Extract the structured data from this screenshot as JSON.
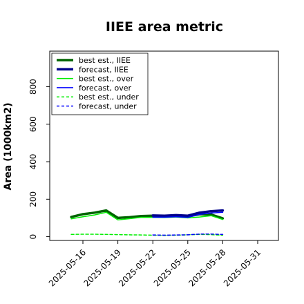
{
  "chart_data": {
    "type": "line",
    "title": "IIEE area metric",
    "xlabel": "",
    "ylabel": "Area (1000km2)",
    "ylim": [
      -20,
      990
    ],
    "y_ticks": [
      0,
      200,
      400,
      600,
      800
    ],
    "x_ticks": [
      "2025-05-16",
      "2025-05-19",
      "2025-05-22",
      "2025-05-25",
      "2025-05-28",
      "2025-05-31"
    ],
    "highlighted_tick": "2025-05-22",
    "highlight_color": "#228b22",
    "legend_position": "upper left",
    "x": [
      "2025-05-15",
      "2025-05-16",
      "2025-05-17",
      "2025-05-18",
      "2025-05-19",
      "2025-05-20",
      "2025-05-21",
      "2025-05-22",
      "2025-05-23",
      "2025-05-24",
      "2025-05-25",
      "2025-05-26",
      "2025-05-27",
      "2025-05-28"
    ],
    "series": [
      {
        "name": "best est., IIEE",
        "color": "#006400",
        "style": "solid",
        "width": 3.5,
        "values": [
          105,
          120,
          128,
          140,
          100,
          104,
          110,
          112,
          110,
          112,
          108,
          120,
          118,
          98
        ]
      },
      {
        "name": "forecast, IIEE",
        "color": "#00008b",
        "style": "solid",
        "width": 3.5,
        "values": [
          null,
          null,
          null,
          null,
          null,
          null,
          null,
          113,
          112,
          115,
          112,
          128,
          136,
          140
        ]
      },
      {
        "name": "best est., over",
        "color": "#00ee00",
        "style": "solid",
        "width": 1.5,
        "values": [
          95,
          106,
          116,
          130,
          90,
          96,
          103,
          103,
          102,
          105,
          100,
          105,
          112,
          92
        ]
      },
      {
        "name": "forecast, over",
        "color": "#0000ff",
        "style": "solid",
        "width": 1.5,
        "values": [
          null,
          null,
          null,
          null,
          null,
          null,
          null,
          104,
          104,
          106,
          103,
          119,
          126,
          130
        ]
      },
      {
        "name": "best est., under",
        "color": "#00ee00",
        "style": "dashed",
        "width": 1.5,
        "values": [
          12,
          13,
          13,
          12,
          11,
          10,
          9,
          8,
          7,
          8,
          10,
          12,
          11,
          8
        ]
      },
      {
        "name": "forecast, under",
        "color": "#0000ff",
        "style": "dashed",
        "width": 1.5,
        "values": [
          null,
          null,
          null,
          null,
          null,
          null,
          null,
          9,
          8,
          9,
          10,
          14,
          14,
          12
        ]
      }
    ]
  }
}
